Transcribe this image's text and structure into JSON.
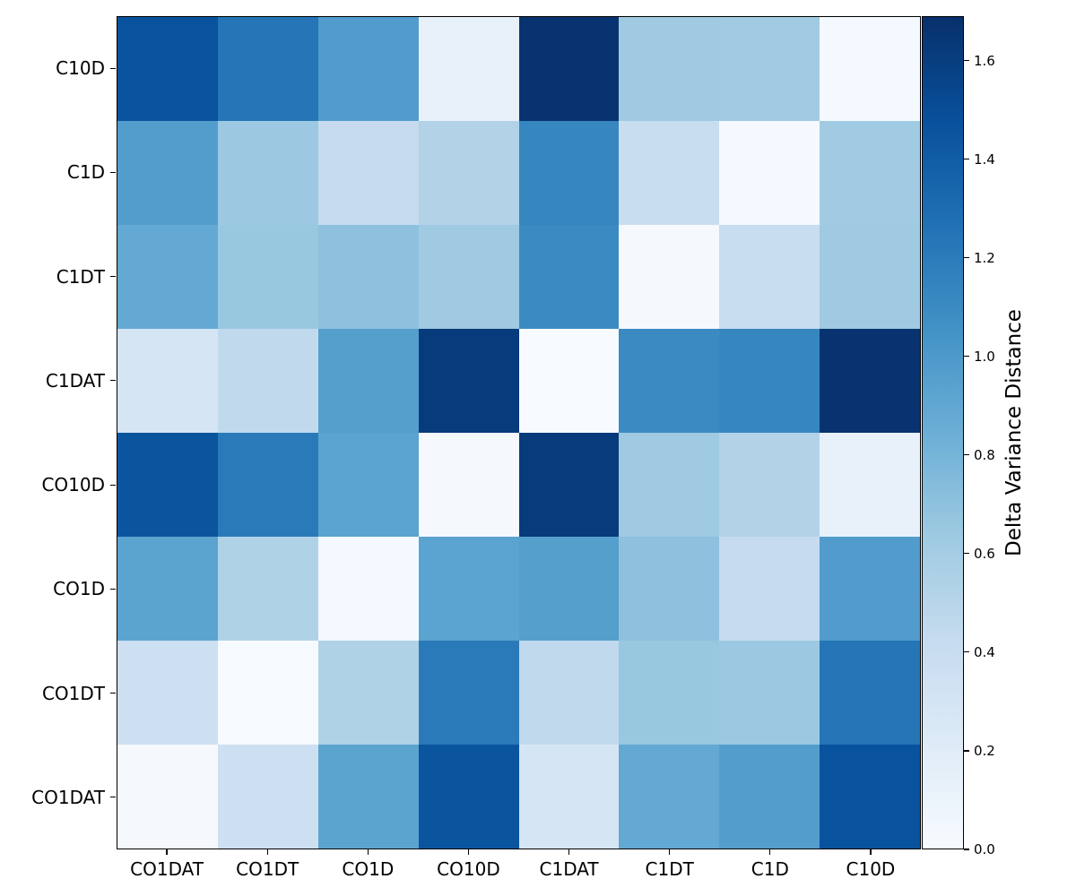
{
  "chart_data": {
    "type": "heatmap",
    "title": "",
    "rows": [
      "C10D",
      "C1D",
      "C1DT",
      "C1DAT",
      "CO10D",
      "CO1D",
      "CO1DT",
      "CO1DAT"
    ],
    "columns": [
      "CO1DAT",
      "CO1DT",
      "CO1D",
      "CO10D",
      "C1DAT",
      "C1DT",
      "C1D",
      "C10D"
    ],
    "values": [
      [
        1.47,
        1.24,
        0.98,
        0.13,
        1.67,
        0.63,
        0.62,
        0.03
      ],
      [
        0.97,
        0.64,
        0.42,
        0.53,
        1.13,
        0.4,
        0.03,
        0.62
      ],
      [
        0.88,
        0.66,
        0.7,
        0.63,
        1.1,
        0.02,
        0.4,
        0.63
      ],
      [
        0.29,
        0.45,
        0.96,
        1.62,
        0.0,
        1.1,
        1.13,
        1.67
      ],
      [
        1.45,
        1.21,
        0.93,
        0.02,
        1.62,
        0.63,
        0.53,
        0.13
      ],
      [
        0.92,
        0.54,
        0.03,
        0.93,
        0.96,
        0.7,
        0.42,
        0.98
      ],
      [
        0.36,
        0.01,
        0.54,
        1.21,
        0.45,
        0.66,
        0.64,
        1.24
      ],
      [
        0.02,
        0.36,
        0.92,
        1.45,
        0.29,
        0.88,
        0.97,
        1.47
      ]
    ],
    "vmin": 0.0,
    "vmax": 1.69,
    "colormap": "Blues",
    "colormap_stops": [
      "#f7fbff",
      "#deebf7",
      "#c6dbef",
      "#9ecae1",
      "#6baed6",
      "#4292c6",
      "#2171b5",
      "#08519c",
      "#08306b"
    ],
    "grid": false,
    "colorbar": {
      "label": "Delta Variance Distance",
      "ticks": [
        0.0,
        0.2,
        0.4,
        0.6,
        0.8,
        1.0,
        1.2,
        1.4,
        1.6
      ],
      "tick_labels": [
        "0.0",
        "0.2",
        "0.4",
        "0.6",
        "0.8",
        "1.0",
        "1.2",
        "1.4",
        "1.6"
      ],
      "position": "right"
    },
    "axis_colors": {
      "text": "#000000",
      "frame": "#000000"
    }
  }
}
